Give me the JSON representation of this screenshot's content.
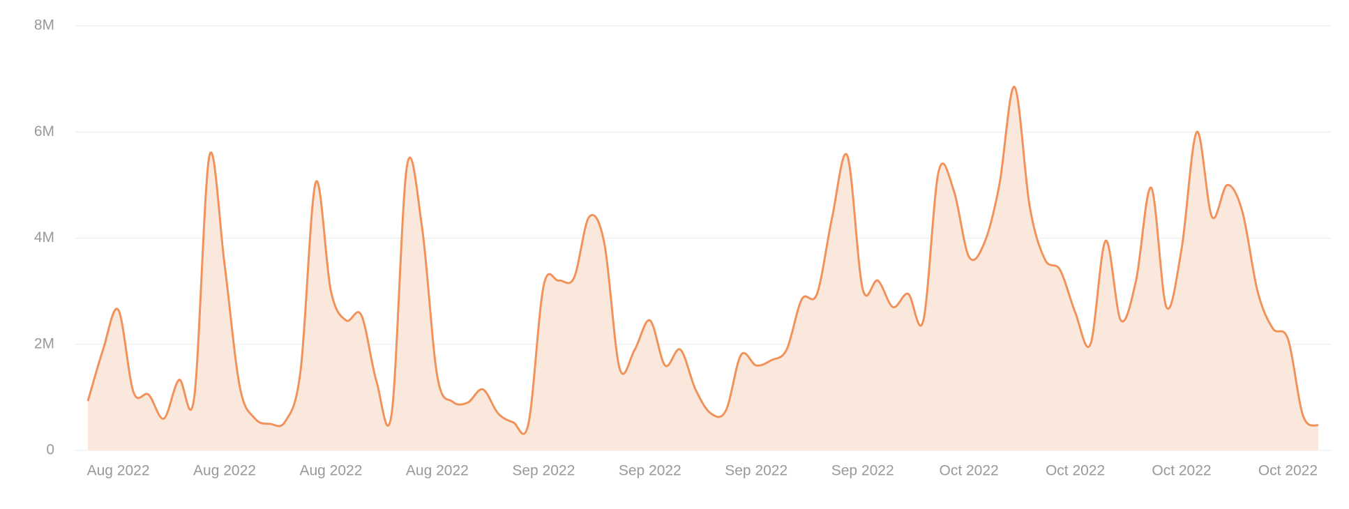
{
  "chart_data": {
    "type": "area",
    "color": "#f0925a",
    "fill": "#fbe8dc",
    "smooth": true,
    "grid": true,
    "ylim": [
      0,
      8000000
    ],
    "yticks": [
      0,
      {
        "value": 2000000,
        "label": "2M"
      },
      {
        "value": 4000000,
        "label": "4M"
      },
      {
        "value": 6000000,
        "label": "6M"
      },
      {
        "value": 8000000,
        "label": "8M"
      }
    ],
    "categories": [
      null,
      null,
      "Aug 2022",
      null,
      null,
      null,
      null,
      null,
      null,
      "Aug 2022",
      null,
      null,
      null,
      null,
      null,
      null,
      "Aug 2022",
      null,
      null,
      null,
      null,
      null,
      null,
      "Aug 2022",
      null,
      null,
      null,
      null,
      null,
      null,
      "Sep 2022",
      null,
      null,
      null,
      null,
      null,
      null,
      "Sep 2022",
      null,
      null,
      null,
      null,
      null,
      null,
      "Sep 2022",
      null,
      null,
      null,
      null,
      null,
      null,
      "Sep 2022",
      null,
      null,
      null,
      null,
      null,
      null,
      "Oct 2022",
      null,
      null,
      null,
      null,
      null,
      null,
      "Oct 2022",
      null,
      null,
      null,
      null,
      null,
      null,
      "Oct 2022",
      null,
      null,
      null,
      null,
      null,
      null,
      "Oct 2022",
      null,
      null
    ],
    "values": [
      930000,
      1900000,
      2650000,
      1100000,
      1050000,
      600000,
      1330000,
      1000000,
      5550000,
      3500000,
      1200000,
      600000,
      500000,
      550000,
      1500000,
      5050000,
      3000000,
      2450000,
      2550000,
      1300000,
      700000,
      5350000,
      4200000,
      1400000,
      920000,
      900000,
      1150000,
      700000,
      530000,
      500000,
      3100000,
      3200000,
      3250000,
      4400000,
      3900000,
      1550000,
      1900000,
      2450000,
      1600000,
      1900000,
      1150000,
      700000,
      750000,
      1800000,
      1600000,
      1700000,
      1900000,
      2850000,
      2950000,
      4400000,
      5550000,
      3050000,
      3200000,
      2700000,
      2950000,
      2450000,
      5250000,
      4900000,
      3650000,
      3900000,
      5000000,
      6850000,
      4600000,
      3600000,
      3400000,
      2600000,
      2000000,
      3950000,
      2450000,
      3200000,
      4950000,
      2700000,
      3800000,
      6000000,
      4400000,
      5000000,
      4500000,
      3000000,
      2300000,
      2100000,
      650000,
      470000
    ]
  }
}
